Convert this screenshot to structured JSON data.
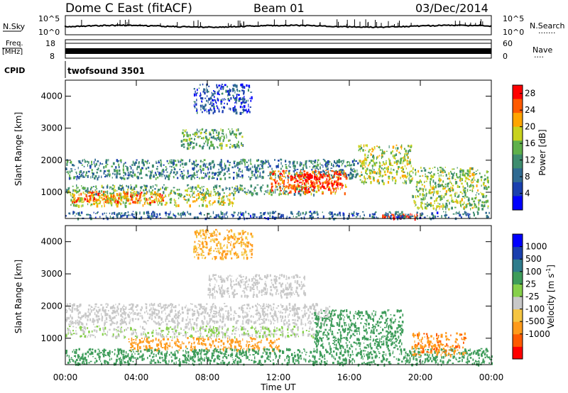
{
  "header": {
    "title": "Dome C East (fitACF)",
    "beam": "Beam 01",
    "date": "03/Dec/2014"
  },
  "strips": {
    "nsky_label": "N.Sky",
    "nsky_ticks": [
      "10^5",
      "10^0"
    ],
    "nsearch_label": "N.Search",
    "nsearch_dots": "·······",
    "freq_label": "Freq.",
    "freq_unit": "[MHz]",
    "freq_ticks": [
      "18",
      "8"
    ],
    "nave_ticks": [
      "60",
      "0"
    ],
    "nave_label": "Nave",
    "nave_dots": "····",
    "cpid_label": "CPID",
    "cpid_value": "twofsound 3501"
  },
  "colors": {
    "power_scale": [
      "#0000ff",
      "#1a3fae",
      "#2f6a91",
      "#3e8c6e",
      "#5fb04a",
      "#c8d21e",
      "#ffa500",
      "#ff5a00",
      "#ff0000"
    ],
    "velocity_scale": [
      "#ff0000",
      "#ff5a00",
      "#ff9a1a",
      "#f5c542",
      "#c8c8c8",
      "#86d04a",
      "#3e9c5a",
      "#2f7c8c",
      "#1a3fae",
      "#0000ff"
    ]
  },
  "chart_data": [
    {
      "type": "heatmap",
      "name": "power",
      "ylabel": "Slant Range [km]",
      "xlabel": "",
      "ylim": [
        180,
        4500
      ],
      "xlim": [
        0,
        24
      ],
      "yticks": [
        1000,
        2000,
        3000,
        4000
      ],
      "xtick_labels": [
        "00:00",
        "04:00",
        "08:00",
        "12:00",
        "16:00",
        "20:00",
        "00:00"
      ],
      "colorbar": {
        "label": "Power [dB]",
        "ticks": [
          4,
          8,
          12,
          16,
          20,
          24,
          28
        ],
        "range": [
          0,
          30
        ]
      },
      "bands": [
        {
          "t0": 0.0,
          "t1": 16.5,
          "r0": 1450,
          "r1": 2050,
          "value": 10
        },
        {
          "t0": 0.0,
          "t1": 14.0,
          "r0": 950,
          "r1": 1250,
          "value": 13
        },
        {
          "t0": 0.2,
          "t1": 9.5,
          "r0": 600,
          "r1": 1000,
          "value": 18
        },
        {
          "t0": 0.3,
          "t1": 5.5,
          "r0": 700,
          "r1": 1050,
          "value": 24
        },
        {
          "t0": 11.5,
          "t1": 15.8,
          "r0": 1000,
          "r1": 1700,
          "value": 24
        },
        {
          "t0": 12.5,
          "t1": 15.5,
          "r0": 1100,
          "r1": 1600,
          "value": 28
        },
        {
          "t0": 6.5,
          "t1": 10.0,
          "r0": 2400,
          "r1": 3000,
          "value": 14
        },
        {
          "t0": 7.2,
          "t1": 10.5,
          "r0": 3500,
          "r1": 4400,
          "value": 6
        },
        {
          "t0": 16.5,
          "t1": 19.5,
          "r0": 1300,
          "r1": 2500,
          "value": 17
        },
        {
          "t0": 17.8,
          "t1": 19.8,
          "r0": 200,
          "r1": 350,
          "value": 28
        },
        {
          "t0": 19.5,
          "t1": 23.8,
          "r0": 500,
          "r1": 1800,
          "value": 16
        },
        {
          "t0": 0.0,
          "t1": 24.0,
          "r0": 200,
          "r1": 420,
          "value": 8
        }
      ]
    },
    {
      "type": "heatmap",
      "name": "velocity",
      "ylabel": "Slant Range [km]",
      "xlabel": "Time UT",
      "ylim": [
        180,
        4500
      ],
      "xlim": [
        0,
        24
      ],
      "yticks": [
        1000,
        2000,
        3000,
        4000
      ],
      "xtick_labels": [
        "00:00",
        "04:00",
        "08:00",
        "12:00",
        "16:00",
        "20:00",
        "00:00"
      ],
      "colorbar": {
        "label": "Velocity [m s",
        "label_sup": "-1",
        "label_end": "]",
        "ticks": [
          1000,
          500,
          100,
          25,
          -25,
          -100,
          -500,
          -1000
        ]
      },
      "bands": [
        {
          "t0": 0.0,
          "t1": 15.0,
          "r0": 1450,
          "r1": 2100,
          "value": 0
        },
        {
          "t0": 0.0,
          "t1": 14.0,
          "r0": 1050,
          "r1": 1400,
          "value": 20
        },
        {
          "t0": 3.5,
          "t1": 12.0,
          "r0": 650,
          "r1": 1050,
          "value": -300
        },
        {
          "t0": 0.0,
          "t1": 24.0,
          "r0": 200,
          "r1": 700,
          "value": 300
        },
        {
          "t0": 14.0,
          "t1": 19.0,
          "r0": 700,
          "r1": 1900,
          "value": 300
        },
        {
          "t0": 19.5,
          "t1": 22.5,
          "r0": 500,
          "r1": 1200,
          "value": -400
        },
        {
          "t0": 8.0,
          "t1": 13.5,
          "r0": 2300,
          "r1": 3000,
          "value": 0
        },
        {
          "t0": 7.2,
          "t1": 10.5,
          "r0": 3500,
          "r1": 4400,
          "value": -100
        }
      ]
    }
  ]
}
